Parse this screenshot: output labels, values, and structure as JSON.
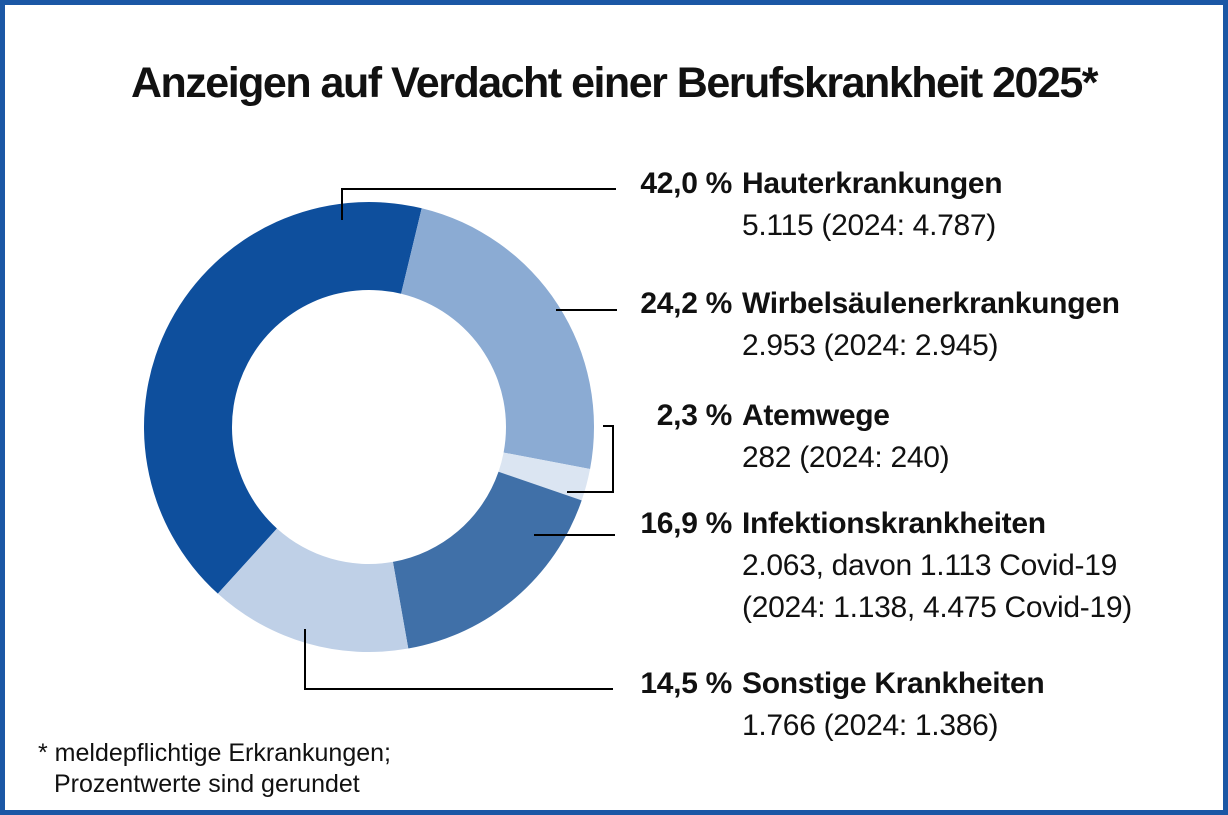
{
  "title": "Anzeigen auf Verdacht einer Berufskrankheit 2025*",
  "frame": {
    "border_color": "#1b57a5",
    "background_color": "#ffffff"
  },
  "chart_data": {
    "type": "pie",
    "variant": "donut",
    "title": "Anzeigen auf Verdacht einer Berufskrankheit 2025*",
    "legend_position": "right",
    "start_angle_deg_clockwise_from_north": 222.2,
    "segments": [
      {
        "label": "Hauterkrankungen",
        "pct_label": "42,0 %",
        "value_pct": 42.0,
        "detail_lines": [
          "5.115 (2024: 4.787)"
        ],
        "color": "#0e4f9d"
      },
      {
        "label": "Wirbelsäulenerkrankungen",
        "pct_label": "24,2 %",
        "value_pct": 24.2,
        "detail_lines": [
          "2.953 (2024: 2.945)"
        ],
        "color": "#8babd3"
      },
      {
        "label": "Atemwege",
        "pct_label": "2,3 %",
        "value_pct": 2.3,
        "detail_lines": [
          "282 (2024: 240)"
        ],
        "color": "#dbe5f2"
      },
      {
        "label": "Infektionskrankheiten",
        "pct_label": "16,9 %",
        "value_pct": 16.9,
        "detail_lines": [
          "2.063, davon 1.113 Covid-19",
          "(2024: 1.138, 4.475 Covid-19)"
        ],
        "color": "#4070a8"
      },
      {
        "label": "Sonstige Krankheiten",
        "pct_label": "14,5 %",
        "value_pct": 14.5,
        "detail_lines": [
          "1.766 (2024: 1.386)"
        ],
        "color": "#bfd0e7"
      }
    ]
  },
  "footnote": {
    "line1": "* meldepflichtige Erkrankungen;",
    "line2": "Prozentwerte sind gerundet"
  }
}
